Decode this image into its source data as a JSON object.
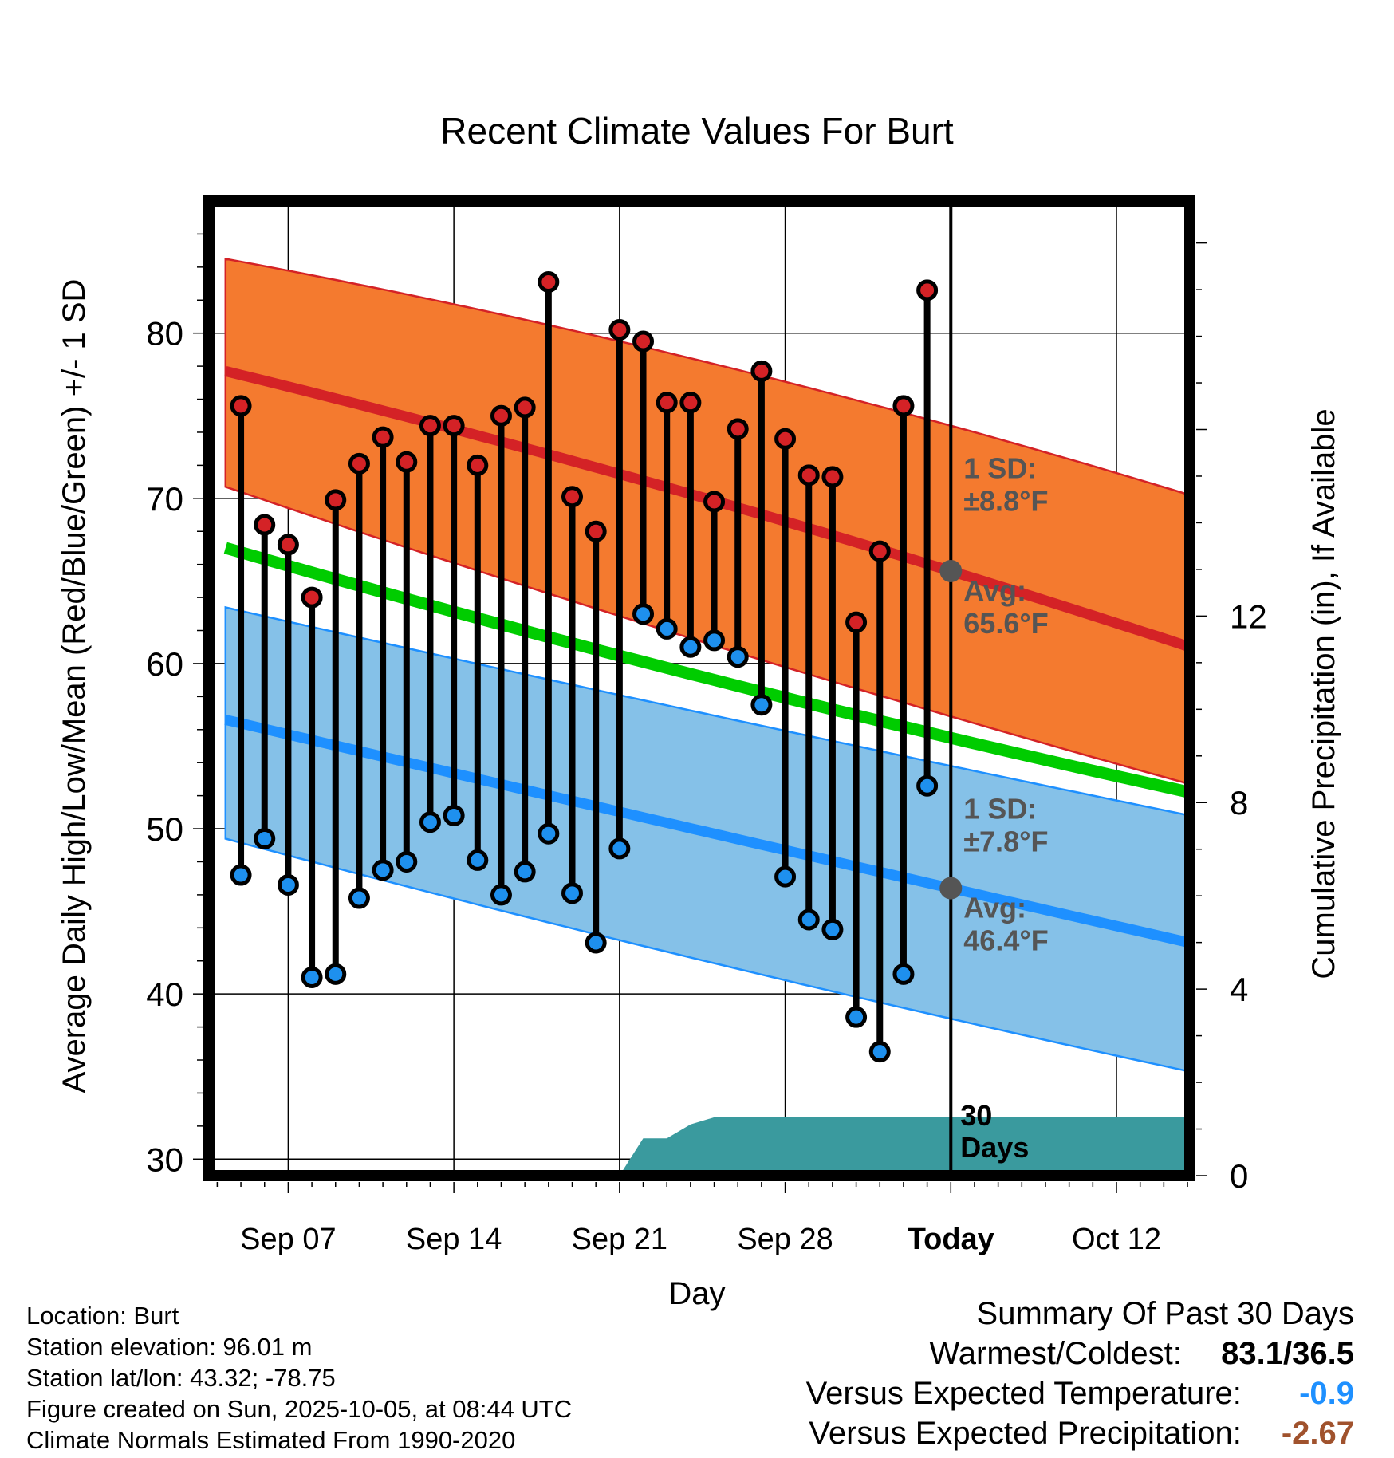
{
  "chart_data": {
    "type": "line",
    "title": "Recent Climate Values For Burt",
    "xlabel": "Day",
    "ylabel": "Average Daily High/Low/Mean (Red/Blue/Green) +/- 1 SD",
    "y2label": "Cumulative Precipitation (in), If Available",
    "ylim": [
      29,
      88
    ],
    "y2lim": [
      0,
      20.9
    ],
    "xlim": [
      -3.35,
      38.1
    ],
    "yticks": [
      30,
      40,
      50,
      60,
      70,
      80
    ],
    "y2ticks": [
      0,
      4,
      8,
      12
    ],
    "xticks": [
      {
        "day": 0,
        "label": "Sep 07"
      },
      {
        "day": 7,
        "label": "Sep 14"
      },
      {
        "day": 14,
        "label": "Sep 21"
      },
      {
        "day": 21,
        "label": "Sep 28"
      },
      {
        "day": 28,
        "label": "Today"
      },
      {
        "day": 35,
        "label": "Oct 12"
      }
    ],
    "today_day": 28,
    "days_window_label": [
      "30",
      "Days"
    ],
    "normals": {
      "x": [
        -2.65,
        28,
        38.1
      ],
      "high_avg": [
        77.7,
        65.6,
        61.0
      ],
      "high_upper": [
        84.5,
        74.4,
        70.2
      ],
      "high_lower": [
        70.7,
        56.8,
        52.7
      ],
      "mean_avg": [
        67.0,
        55.5,
        52.2
      ],
      "low_avg": [
        56.6,
        46.4,
        43.1
      ],
      "low_upper": [
        63.4,
        53.8,
        50.8
      ],
      "low_lower": [
        49.4,
        38.5,
        35.3
      ]
    },
    "series": [
      {
        "name": "Daily High",
        "color": "#d42226",
        "x": [
          -2,
          -1,
          0,
          1,
          2,
          3,
          4,
          5,
          6,
          7,
          8,
          9,
          10,
          11,
          12,
          13,
          14,
          15,
          16,
          17,
          18,
          19,
          20,
          21,
          22,
          23,
          24,
          25,
          26,
          27
        ],
        "values": [
          75.6,
          68.4,
          67.2,
          64.0,
          69.9,
          72.1,
          73.7,
          72.2,
          74.4,
          74.4,
          72.0,
          75.0,
          75.5,
          83.1,
          70.1,
          68.0,
          80.2,
          79.5,
          75.8,
          75.8,
          69.8,
          74.2,
          77.7,
          73.6,
          71.4,
          71.3,
          62.5,
          66.8,
          75.6,
          82.6
        ]
      },
      {
        "name": "Daily Low",
        "color": "#1e90ee",
        "x": [
          -2,
          -1,
          0,
          1,
          2,
          3,
          4,
          5,
          6,
          7,
          8,
          9,
          10,
          11,
          12,
          13,
          14,
          15,
          16,
          17,
          18,
          19,
          20,
          21,
          22,
          23,
          24,
          25,
          26,
          27
        ],
        "values": [
          47.2,
          49.4,
          46.6,
          41.0,
          41.2,
          45.8,
          47.5,
          48.0,
          50.4,
          50.8,
          48.1,
          46.0,
          47.4,
          49.7,
          46.1,
          43.1,
          48.8,
          63.0,
          62.1,
          61.0,
          61.4,
          60.4,
          57.5,
          47.1,
          44.5,
          43.9,
          38.6,
          36.5,
          41.2,
          52.6
        ]
      }
    ],
    "precipitation": {
      "x": [
        14,
        15,
        16,
        17,
        18,
        28,
        38.1
      ],
      "values": [
        0,
        0.8,
        0.8,
        1.1,
        1.25,
        1.25,
        1.25
      ],
      "color": "#3a9a9e"
    },
    "annotations": {
      "high_sd_label": "1 SD:",
      "high_sd_value": "±8.8°F",
      "high_avg_label": "Avg:",
      "high_avg_value": "65.6°F",
      "low_sd_label": "1 SD:",
      "low_sd_value": "±7.8°F",
      "low_avg_label": "Avg:",
      "low_avg_value": "46.4°F"
    },
    "colors": {
      "high_band": "#f47a2f",
      "high_line": "#d42226",
      "mean_line": "#00cc00",
      "low_band": "#85c1e8",
      "low_line": "#1e90ff",
      "precip": "#3a9a9e",
      "annotation": "#555555"
    }
  },
  "footer": {
    "location": "Location: Burt",
    "elevation": "Station elevation: 96.01 m",
    "latlon": "Station lat/lon: 43.32; -78.75",
    "created": "Figure created on Sun, 2025-10-05, at 08:44 UTC",
    "normals": "Climate Normals Estimated From 1990-2020"
  },
  "summary": {
    "title": "Summary Of Past 30 Days",
    "warmest_label": "Warmest/Coldest:",
    "warmest_value": "83.1/36.5",
    "temp_label": "Versus Expected Temperature:",
    "temp_value": "-0.9",
    "temp_color": "#1e90ff",
    "precip_label": "Versus Expected Precipitation:",
    "precip_value": "-2.67",
    "precip_color": "#a0522d"
  }
}
